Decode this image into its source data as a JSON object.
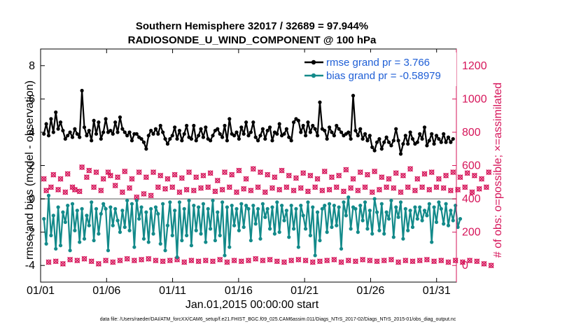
{
  "chart_data": {
    "type": "line",
    "title": "Southern Hemisphere 32017 / 32689 = 97.944%",
    "subtitle": "RADIOSONDE_U_WIND_COMPONENT @ 100 hPa",
    "xlabel": "Jan.01,2015 00:00:00 start",
    "ylabel_left": "rmse and bias (model - observation)",
    "ylabel_right": "# of obs: o=possible; ×=assimilated",
    "x_ticks": [
      "01/01",
      "01/06",
      "01/11",
      "01/16",
      "01/21",
      "01/26",
      "01/31"
    ],
    "x_tick_days": [
      0,
      5,
      10,
      15,
      20,
      25,
      30
    ],
    "xlim": [
      0,
      31.5
    ],
    "ylim_left": [
      -5,
      9
    ],
    "y_ticks_left": [
      -4,
      -2,
      0,
      2,
      4,
      6,
      8
    ],
    "ylim_right": [
      -100,
      1300
    ],
    "y_ticks_right": [
      0,
      200,
      400,
      600,
      800,
      1000,
      1200
    ],
    "zero_line": 0,
    "series": [
      {
        "name": "rmse grand pr = 3.766",
        "color": "#000000",
        "axis": "left",
        "values": [
          3.9,
          4.5,
          3.8,
          4.8,
          4.0,
          5.2,
          4.2,
          4.6,
          4.1,
          3.6,
          3.8,
          4.0,
          3.7,
          4.2,
          3.9,
          3.7,
          6.5,
          4.3,
          3.8,
          4.1,
          3.5,
          4.7,
          3.9,
          4.6,
          3.6,
          4.0,
          4.8,
          4.0,
          4.1,
          3.9,
          4.6,
          4.0,
          4.9,
          4.2,
          4.0,
          3.8,
          4.0,
          3.5,
          3.9,
          3.9,
          3.7,
          3.6,
          3.4,
          3.0,
          3.8,
          4.1,
          3.9,
          4.2,
          3.9,
          4.4,
          4.0,
          3.6,
          3.3,
          3.6,
          3.8,
          4.3,
          3.6,
          4.1,
          3.5,
          3.9,
          4.4,
          3.7,
          3.6,
          4.4,
          3.5,
          3.8,
          4.2,
          3.7,
          4.3,
          3.6,
          3.5,
          3.8,
          4.1,
          4.2,
          3.9,
          3.7,
          4.4,
          3.5,
          4.8,
          3.9,
          3.8,
          4.0,
          3.6,
          4.3,
          3.9,
          4.6,
          3.8,
          4.0,
          4.6,
          3.7,
          3.5,
          3.8,
          4.2,
          3.6,
          4.1,
          4.3,
          3.5,
          4.0,
          3.9,
          4.5,
          3.8,
          3.9,
          4.2,
          3.7,
          3.5,
          4.6,
          4.8,
          4.7,
          4.0,
          4.4,
          3.8,
          4.6,
          4.0,
          4.4,
          4.2,
          3.8,
          5.8,
          4.2,
          4.1,
          3.6,
          4.3,
          4.0,
          3.8,
          4.4,
          4.2,
          4.0,
          3.8,
          3.9,
          4.0,
          3.6,
          6.2,
          4.1,
          3.8,
          4.2,
          3.6,
          3.9,
          3.5,
          3.8,
          3.1,
          2.9,
          3.4,
          3.6,
          3.0,
          3.4,
          3.7,
          3.4,
          3.2,
          3.5,
          4.2,
          3.5,
          2.7,
          3.3,
          3.8,
          3.3,
          4.0,
          3.6,
          3.3,
          3.4,
          3.9,
          3.6,
          4.3,
          3.2,
          3.5,
          3.9,
          3.3,
          3.8,
          3.6,
          3.4,
          3.9,
          3.4,
          3.7,
          3.4,
          3.6
        ]
      },
      {
        "name": "bias grand pr = -0.58979",
        "color": "#138a8a",
        "axis": "left",
        "values": [
          -1.2,
          -2.7,
          0.2,
          -2.2,
          -1.0,
          -3.0,
          -0.5,
          -2.8,
          -0.8,
          -1.4,
          -0.4,
          -3.1,
          -0.3,
          -1.9,
          -0.7,
          -2.6,
          -0.6,
          -2.4,
          -1.0,
          -1.6,
          -0.2,
          -2.5,
          -0.6,
          -2.1,
          -0.9,
          -0.3,
          -0.6,
          -3.1,
          -0.5,
          -1.6,
          -0.6,
          -1.3,
          -2.0,
          -0.7,
          -1.7,
          -0.1,
          -1.9,
          -0.3,
          -2.9,
          -0.1,
          -1.2,
          -0.5,
          -2.4,
          -0.8,
          -2.6,
          -0.6,
          -2.1,
          -0.5,
          -0.9,
          -2.7,
          -0.3,
          -3.1,
          -1.6,
          -0.2,
          -2.2,
          -0.7,
          -3.5,
          -0.2,
          -2.5,
          -0.6,
          -2.2,
          -0.1,
          -2.8,
          -0.4,
          -1.9,
          -0.5,
          -2.1,
          -0.3,
          -2.6,
          -0.6,
          -1.8,
          -0.1,
          -2.5,
          -0.8,
          -2.2,
          -0.2,
          -3.4,
          -0.5,
          -2.9,
          -0.4,
          -1.6,
          -0.6,
          -1.9,
          -0.3,
          -1.7,
          -0.4,
          -0.6,
          -2.5,
          -0.4,
          -1.5,
          -0.6,
          -2.4,
          -0.3,
          -1.1,
          -0.6,
          -1.8,
          -0.5,
          -2.1,
          -0.2,
          -2.0,
          -0.4,
          -1.3,
          -0.7,
          -2.3,
          -0.4,
          -1.8,
          -0.6,
          -2.9,
          -0.4,
          -1.0,
          -1.8,
          -0.2,
          -2.2,
          -0.5,
          -3.4,
          -0.8,
          -2.5,
          -0.6,
          -0.4,
          -2.0,
          -0.3,
          -1.7,
          -0.4,
          -1.6,
          -0.5,
          -3.0,
          -0.2,
          -1.0,
          0.1,
          -1.8,
          -0.5,
          -0.6,
          -2.0,
          -0.4,
          -1.3,
          -0.2,
          -1.8,
          -0.7,
          -2.1,
          0.0,
          -0.8,
          -1.9,
          -0.3,
          -2.1,
          -0.8,
          -1.2,
          -0.1,
          -2.3,
          -0.5,
          -1.1,
          -0.2,
          -2.4,
          -0.6,
          -1.9,
          -0.7,
          -1.7,
          -0.5,
          -1.2,
          -0.5,
          -1.3,
          -0.7,
          -1.0,
          -0.3,
          -2.6,
          -0.5,
          -1.4,
          -0.2,
          -0.6,
          -1.5,
          -0.3,
          -1.6,
          -0.7,
          -1.3,
          -0.4,
          -1.7,
          -1.2
        ]
      },
      {
        "name": "possible",
        "color": "#d6155a",
        "axis": "right",
        "values": [
          520,
          450,
          20,
          470,
          545,
          25,
          455,
          520,
          10,
          440,
          550,
          35,
          470,
          455,
          30,
          445,
          590,
          40,
          530,
          570,
          25,
          470,
          560,
          10,
          450,
          520,
          30,
          560,
          540,
          20,
          480,
          530,
          30,
          440,
          565,
          40,
          465,
          520,
          30,
          410,
          560,
          35,
          430,
          530,
          40,
          420,
          560,
          30,
          470,
          540,
          25,
          460,
          520,
          30,
          470,
          545,
          35,
          440,
          525,
          20,
          455,
          560,
          30,
          450,
          530,
          25,
          465,
          540,
          30,
          470,
          555,
          25,
          445,
          510,
          35,
          455,
          560,
          20,
          470,
          545,
          30,
          440,
          570,
          25,
          460,
          520,
          30,
          450,
          580,
          40,
          470,
          560,
          30,
          440,
          545,
          35,
          465,
          530,
          25,
          455,
          570,
          20,
          470,
          540,
          30,
          450,
          525,
          35,
          465,
          555,
          30,
          445,
          540,
          20,
          470,
          520,
          25,
          450,
          565,
          30,
          455,
          530,
          35,
          470,
          540,
          20,
          445,
          575,
          30,
          465,
          520,
          25,
          450,
          560,
          35,
          470,
          545,
          30,
          440,
          565,
          25,
          455,
          530,
          30,
          470,
          520,
          35,
          465,
          555,
          20,
          440,
          540,
          30,
          470,
          580,
          25,
          450,
          520,
          30,
          470,
          550,
          35,
          455,
          560,
          25,
          470,
          520,
          30,
          465,
          540,
          20,
          450,
          560,
          30,
          455,
          530,
          20,
          470,
          555,
          30,
          440,
          540,
          25,
          460,
          520,
          10,
          470,
          560,
          0
        ]
      }
    ]
  },
  "footer": {
    "data_file": "data file: /Users/raeder/DAI/ATM_forcXX/CAM6_setup/f.e21.FHIST_BGC.f09_025.CAM6assim.011/Diags_NTrS_2017-02/Diags_NTrS_2015-01/obs_diag_output.nc"
  }
}
